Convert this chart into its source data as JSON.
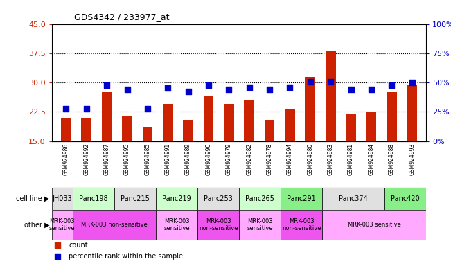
{
  "title": "GDS4342 / 233977_at",
  "samples": [
    "GSM924986",
    "GSM924992",
    "GSM924987",
    "GSM924995",
    "GSM924985",
    "GSM924991",
    "GSM924989",
    "GSM924990",
    "GSM924979",
    "GSM924982",
    "GSM924978",
    "GSM924994",
    "GSM924980",
    "GSM924983",
    "GSM924981",
    "GSM924984",
    "GSM924988",
    "GSM924993"
  ],
  "counts": [
    21.0,
    21.0,
    27.5,
    21.5,
    18.5,
    24.5,
    20.5,
    26.5,
    24.5,
    25.5,
    20.5,
    23.0,
    31.5,
    38.0,
    22.0,
    22.5,
    27.5,
    29.5
  ],
  "percentiles": [
    27.5,
    27.5,
    47.5,
    44.0,
    27.5,
    45.0,
    42.5,
    47.5,
    44.0,
    46.0,
    44.0,
    46.0,
    50.5,
    50.5,
    44.0,
    44.0,
    47.5,
    50.0
  ],
  "ylim_left": [
    15,
    45
  ],
  "yticks_left": [
    15,
    22.5,
    30,
    37.5,
    45
  ],
  "ylim_right": [
    0,
    100
  ],
  "yticks_right": [
    0,
    25,
    50,
    75,
    100
  ],
  "bar_color": "#cc2200",
  "dot_color": "#0000cc",
  "cell_lines": [
    {
      "label": "JH033",
      "start": 0,
      "end": 1,
      "color": "#e0e0e0"
    },
    {
      "label": "Panc198",
      "start": 1,
      "end": 3,
      "color": "#ccffcc"
    },
    {
      "label": "Panc215",
      "start": 3,
      "end": 5,
      "color": "#e0e0e0"
    },
    {
      "label": "Panc219",
      "start": 5,
      "end": 7,
      "color": "#ccffcc"
    },
    {
      "label": "Panc253",
      "start": 7,
      "end": 9,
      "color": "#e0e0e0"
    },
    {
      "label": "Panc265",
      "start": 9,
      "end": 11,
      "color": "#ccffcc"
    },
    {
      "label": "Panc291",
      "start": 11,
      "end": 13,
      "color": "#88ee88"
    },
    {
      "label": "Panc374",
      "start": 13,
      "end": 16,
      "color": "#e0e0e0"
    },
    {
      "label": "Panc420",
      "start": 16,
      "end": 18,
      "color": "#88ee88"
    }
  ],
  "other_groups": [
    {
      "label": "MRK-003\nsensitive",
      "start": 0,
      "end": 1,
      "color": "#ffaaff"
    },
    {
      "label": "MRK-003 non-sensitive",
      "start": 1,
      "end": 5,
      "color": "#ee55ee"
    },
    {
      "label": "MRK-003\nsensitive",
      "start": 5,
      "end": 7,
      "color": "#ffaaff"
    },
    {
      "label": "MRK-003\nnon-sensitive",
      "start": 7,
      "end": 9,
      "color": "#ee55ee"
    },
    {
      "label": "MRK-003\nsensitive",
      "start": 9,
      "end": 11,
      "color": "#ffaaff"
    },
    {
      "label": "MRK-003\nnon-sensitive",
      "start": 11,
      "end": 13,
      "color": "#ee55ee"
    },
    {
      "label": "MRK-003 sensitive",
      "start": 13,
      "end": 18,
      "color": "#ffaaff"
    }
  ],
  "xtick_bg_color": "#c8c8c8",
  "legend_count_color": "#cc2200",
  "legend_dot_color": "#0000cc",
  "axis_left_color": "#cc2200",
  "axis_right_color": "#0000cc",
  "dotted_gridlines": [
    22.5,
    30,
    37.5
  ],
  "bar_width": 0.5,
  "dot_size": 30,
  "n_samples": 18
}
